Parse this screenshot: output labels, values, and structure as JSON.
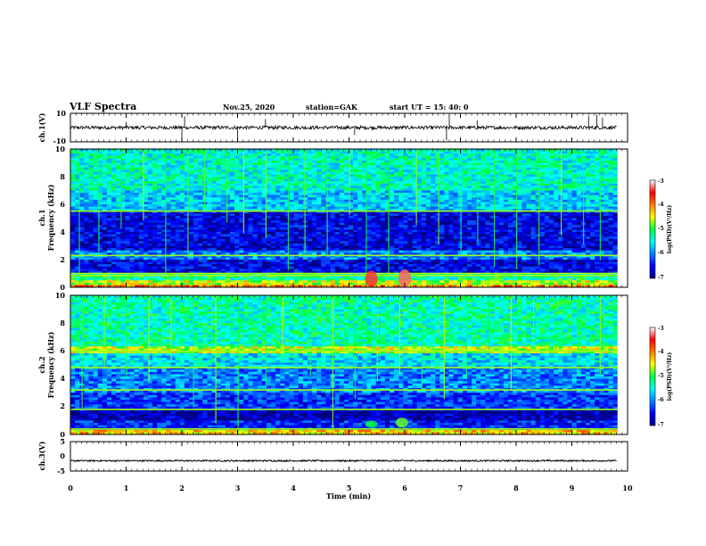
{
  "header": {
    "title": "VLF Spectra",
    "date": "Nov.25, 2020",
    "station": "station=GAK",
    "start": "start  UT =   15: 40: 0"
  },
  "chart_data": [
    {
      "type": "line",
      "name": "ch1-waveform",
      "ylabel": "ch.1(V)",
      "ylim": [
        -10,
        10
      ],
      "yticks": [
        "10",
        "-10"
      ],
      "xlim": [
        0,
        10
      ],
      "baseline": 0,
      "noise_amplitude": 1.2,
      "spikes": [
        {
          "t": 1.0,
          "v": 4
        },
        {
          "t": 2.0,
          "v": -9
        },
        {
          "t": 2.05,
          "v": 8
        },
        {
          "t": 3.0,
          "v": -8
        },
        {
          "t": 3.5,
          "v": 6
        },
        {
          "t": 5.1,
          "v": -5
        },
        {
          "t": 6.75,
          "v": -9
        },
        {
          "t": 6.8,
          "v": 9
        },
        {
          "t": 7.3,
          "v": 5
        },
        {
          "t": 9.3,
          "v": 8
        },
        {
          "t": 9.45,
          "v": 9
        },
        {
          "t": 9.55,
          "v": 7
        }
      ]
    },
    {
      "type": "heatmap",
      "name": "ch1-spectrogram",
      "ylabel_line1": "ch.1",
      "ylabel_line2": "Frequency (kHz)",
      "ylim": [
        0,
        10
      ],
      "yticks": [
        "0",
        "2",
        "4",
        "6",
        "8",
        "10"
      ],
      "xlim": [
        0,
        10
      ],
      "colorbar": {
        "label": "log(PSD)(V²/Hz)",
        "ticks": [
          "-3",
          "-4",
          "-5",
          "-6",
          "-7"
        ],
        "range": [
          -7,
          -3
        ]
      },
      "bands": [
        {
          "f0": 0.0,
          "f1": 0.2,
          "level": -4.0
        },
        {
          "f0": 0.2,
          "f1": 0.5,
          "level": -4.6
        },
        {
          "f0": 0.5,
          "f1": 1.0,
          "level": -5.2
        },
        {
          "f0": 1.0,
          "f1": 2.0,
          "level": -6.6
        },
        {
          "f0": 2.0,
          "f1": 2.6,
          "level": -6.0
        },
        {
          "f0": 2.6,
          "f1": 5.5,
          "level": -6.6
        },
        {
          "f0": 5.5,
          "f1": 7.0,
          "level": -5.7
        },
        {
          "f0": 7.0,
          "f1": 10.0,
          "level": -5.4
        }
      ],
      "lines": [
        0.85,
        1.0,
        2.3,
        5.5
      ],
      "bursts": [
        {
          "t": 5.4,
          "f0": 0.0,
          "f1": 1.2,
          "level": -3.4
        },
        {
          "t": 6.0,
          "f0": 0.0,
          "f1": 1.3,
          "level": -3.3
        }
      ],
      "sferics": [
        0.15,
        0.5,
        0.9,
        1.3,
        1.7,
        2.1,
        2.4,
        2.8,
        3.1,
        3.5,
        3.9,
        4.2,
        4.6,
        5.0,
        5.3,
        5.7,
        6.2,
        6.6,
        7.0,
        7.3,
        7.6,
        8.0,
        8.4,
        8.8,
        9.2,
        9.5
      ]
    },
    {
      "type": "heatmap",
      "name": "ch2-spectrogram",
      "ylabel_line1": "ch.2",
      "ylabel_line2": "Frequency (kHz)",
      "ylim": [
        0,
        10
      ],
      "yticks": [
        "0",
        "2",
        "4",
        "6",
        "8",
        "10"
      ],
      "xlim": [
        0,
        10
      ],
      "colorbar": {
        "label": "log(PSD)(V²/Hz)",
        "ticks": [
          "-3",
          "-4",
          "-5",
          "-6",
          "-7"
        ],
        "range": [
          -7,
          -3
        ]
      },
      "bands": [
        {
          "f0": 0.0,
          "f1": 0.3,
          "level": -4.3
        },
        {
          "f0": 0.3,
          "f1": 1.0,
          "level": -6.4
        },
        {
          "f0": 1.0,
          "f1": 1.8,
          "level": -6.8
        },
        {
          "f0": 1.8,
          "f1": 3.0,
          "level": -6.3
        },
        {
          "f0": 3.0,
          "f1": 4.8,
          "level": -6.0
        },
        {
          "f0": 4.8,
          "f1": 5.8,
          "level": -5.6
        },
        {
          "f0": 5.8,
          "f1": 6.3,
          "level": -4.6
        },
        {
          "f0": 6.3,
          "f1": 10.0,
          "level": -5.3
        }
      ],
      "lines": [
        0.4,
        1.8,
        3.2,
        4.8,
        6.0
      ],
      "bursts": [
        {
          "t": 5.4,
          "f0": 0.5,
          "f1": 1.0,
          "level": -5.0
        },
        {
          "t": 5.95,
          "f0": 0.5,
          "f1": 1.2,
          "level": -4.8
        }
      ],
      "sferics": [
        0.2,
        0.6,
        1.0,
        1.4,
        1.8,
        2.2,
        2.6,
        3.0,
        3.5,
        3.8,
        4.3,
        4.7,
        5.1,
        5.5,
        5.9,
        6.3,
        6.7,
        7.1,
        7.5,
        7.9,
        8.3,
        8.7,
        9.1,
        9.5
      ]
    },
    {
      "type": "line",
      "name": "ch3-waveform",
      "ylabel": "ch.3(V)",
      "ylim": [
        -5,
        5
      ],
      "yticks": [
        "5",
        "0",
        "-5"
      ],
      "xlim": [
        0,
        10
      ],
      "baseline": -1.5,
      "noise_amplitude": 0.25,
      "spikes": []
    }
  ],
  "xaxis": {
    "label": "Time (min)",
    "ticks": [
      "0",
      "1",
      "2",
      "3",
      "4",
      "5",
      "6",
      "7",
      "8",
      "9",
      "10"
    ]
  }
}
